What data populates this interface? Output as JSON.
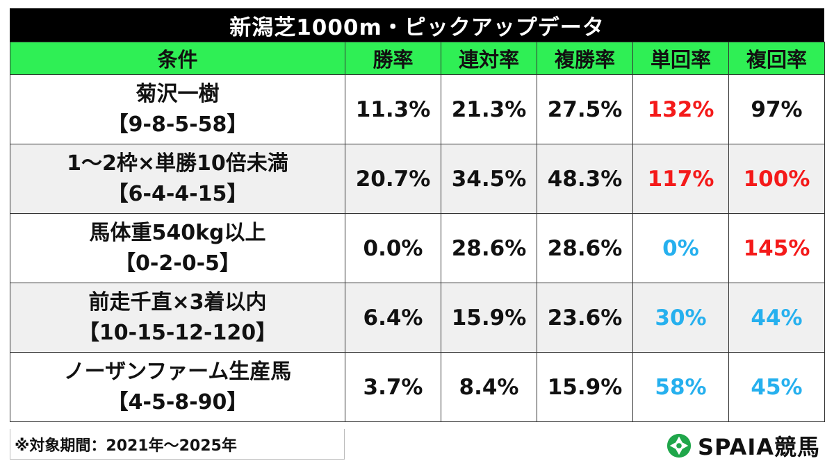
{
  "title": "新潟芝1000m・ピックアップデータ",
  "headers": [
    "条件",
    "勝率",
    "連対率",
    "複勝率",
    "単回率",
    "複回率"
  ],
  "rows": [
    {
      "name": "菊沢一樹",
      "record": "【9-8-5-58】",
      "win_rate": "11.3%",
      "place2_rate": "21.3%",
      "place3_rate": "27.5%",
      "win_return": "132%",
      "place_return": "97%"
    },
    {
      "name": "1～2枠×単勝10倍未満",
      "record": "【6-4-4-15】",
      "win_rate": "20.7%",
      "place2_rate": "34.5%",
      "place3_rate": "48.3%",
      "win_return": "117%",
      "place_return": "100%"
    },
    {
      "name": "馬体重540kg以上",
      "record": "【0-2-0-5】",
      "win_rate": "0.0%",
      "place2_rate": "28.6%",
      "place3_rate": "28.6%",
      "win_return": "0%",
      "place_return": "145%"
    },
    {
      "name": "前走千直×3着以内",
      "record": "【10-15-12-120】",
      "win_rate": "6.4%",
      "place2_rate": "15.9%",
      "place3_rate": "23.6%",
      "win_return": "30%",
      "place_return": "44%"
    },
    {
      "name": "ノーザンファーム生産馬",
      "record": "【4-5-8-90】",
      "win_rate": "3.7%",
      "place2_rate": "8.4%",
      "place3_rate": "15.9%",
      "win_return": "58%",
      "place_return": "45%"
    }
  ],
  "note": "※対象期間：2021年～2025年",
  "brand": {
    "name": "SPAIA競馬",
    "icon": "spaia-logo-icon",
    "color": "#1fa64a"
  },
  "colors": {
    "title_bg": "#000000",
    "header_bg": "#2fef55",
    "high_return": "#f41a1a",
    "low_return": "#26b0ee"
  }
}
